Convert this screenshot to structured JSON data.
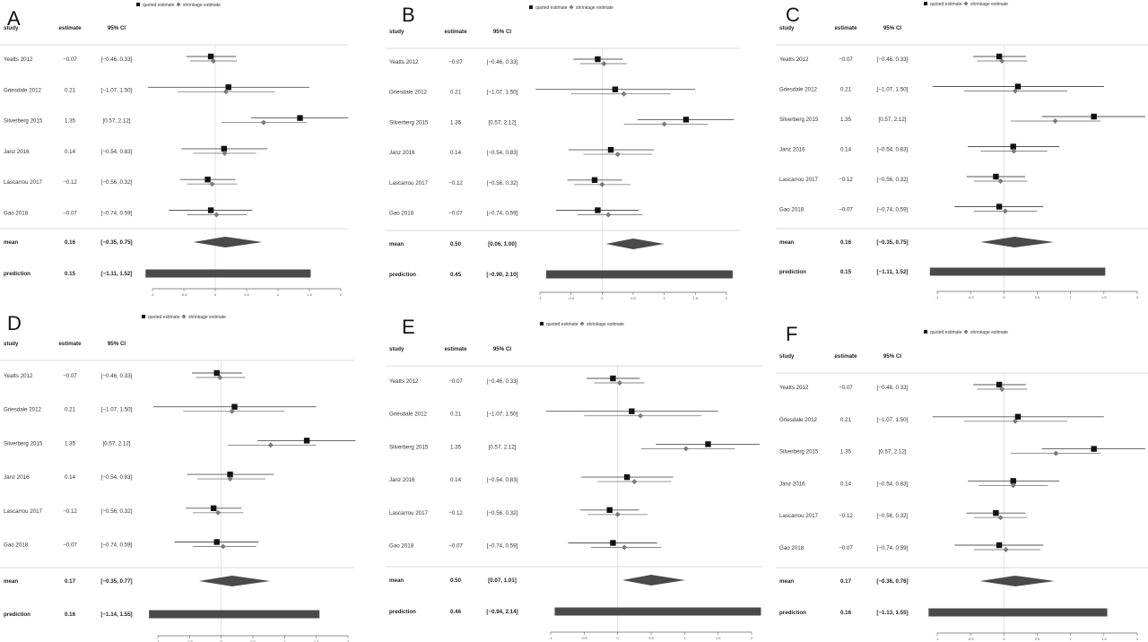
{
  "legend": {
    "quoted_label": "quoted estimate",
    "shrinkage_label": "shrinkage estimate"
  },
  "headers": {
    "study": "study",
    "estimate": "estimate",
    "ci": "95% CI"
  },
  "row_labels": {
    "mean": "mean",
    "prediction": "prediction"
  },
  "colors": {
    "quoted": "#111111",
    "shrinkage": "#7a7a7a",
    "summary": "#4a4a4a",
    "rule": "#cccccc"
  },
  "chart_data": [
    {
      "type": "forest",
      "panel": "A",
      "xlim": [
        -1,
        2
      ],
      "xticks": [
        "-1",
        "-0.5",
        "0",
        "0.5",
        "1",
        "1.5",
        "2"
      ],
      "studies": [
        {
          "name": "Yeatts 2012",
          "estimate": "−0.07",
          "ci": "[−0.46, 0.33]",
          "q": -0.07,
          "qlo": -0.46,
          "qhi": 0.33,
          "s": -0.03,
          "slo": -0.4,
          "shi": 0.35
        },
        {
          "name": "Griesdale 2012",
          "estimate": "0.21",
          "ci": "[−1.07, 1.50]",
          "q": 0.21,
          "qlo": -1.07,
          "qhi": 1.5,
          "s": 0.17,
          "slo": -0.6,
          "shi": 0.95
        },
        {
          "name": "Silverberg 2015",
          "estimate": "1.35",
          "ci": "[0.57, 2.12]",
          "q": 1.35,
          "qlo": 0.57,
          "qhi": 2.12,
          "s": 0.77,
          "slo": 0.1,
          "shi": 1.45
        },
        {
          "name": "Janz 2016",
          "estimate": "0.14",
          "ci": "[−0.54, 0.83]",
          "q": 0.14,
          "qlo": -0.54,
          "qhi": 0.83,
          "s": 0.15,
          "slo": -0.35,
          "shi": 0.65
        },
        {
          "name": "Lascarrou 2017",
          "estimate": "−0.12",
          "ci": "[−0.56, 0.32]",
          "q": -0.12,
          "qlo": -0.56,
          "qhi": 0.32,
          "s": -0.05,
          "slo": -0.45,
          "shi": 0.35
        },
        {
          "name": "Gao 2018",
          "estimate": "−0.07",
          "ci": "[−0.74, 0.59]",
          "q": -0.07,
          "qlo": -0.74,
          "qhi": 0.59,
          "s": 0.02,
          "slo": -0.45,
          "shi": 0.5
        }
      ],
      "mean": {
        "estimate": "0.16",
        "ci": "[−0.35, 0.75]",
        "value": 0.16,
        "lo": -0.35,
        "hi": 0.75
      },
      "prediction": {
        "estimate": "0.15",
        "ci": "[−1.11, 1.52]",
        "lo": -1.11,
        "hi": 1.52
      }
    },
    {
      "type": "forest",
      "panel": "B",
      "xlim": [
        -1,
        2
      ],
      "xticks": [
        "-1",
        "-0.5",
        "0",
        "0.5",
        "1",
        "1.5",
        "2"
      ],
      "studies": [
        {
          "name": "Yeatts 2012",
          "estimate": "−0.07",
          "ci": "[−0.46, 0.33]",
          "q": -0.07,
          "qlo": -0.46,
          "qhi": 0.33,
          "s": 0.03,
          "slo": -0.35,
          "shi": 0.4
        },
        {
          "name": "Griesdale 2012",
          "estimate": "0.21",
          "ci": "[−1.07, 1.50]",
          "q": 0.21,
          "qlo": -1.07,
          "qhi": 1.5,
          "s": 0.35,
          "slo": -0.5,
          "shi": 1.1
        },
        {
          "name": "Silverberg 2015",
          "estimate": "1.35",
          "ci": "[0.57, 2.12]",
          "q": 1.35,
          "qlo": 0.57,
          "qhi": 2.12,
          "s": 1.0,
          "slo": 0.35,
          "shi": 1.7
        },
        {
          "name": "Janz 2016",
          "estimate": "0.14",
          "ci": "[−0.54, 0.83]",
          "q": 0.14,
          "qlo": -0.54,
          "qhi": 0.83,
          "s": 0.25,
          "slo": -0.3,
          "shi": 0.8
        },
        {
          "name": "Lascarrou 2017",
          "estimate": "−0.12",
          "ci": "[−0.56, 0.32]",
          "q": -0.12,
          "qlo": -0.56,
          "qhi": 0.32,
          "s": 0.0,
          "slo": -0.45,
          "shi": 0.45
        },
        {
          "name": "Gao 2018",
          "estimate": "−0.07",
          "ci": "[−0.74, 0.59]",
          "q": -0.07,
          "qlo": -0.74,
          "qhi": 0.59,
          "s": 0.1,
          "slo": -0.4,
          "shi": 0.65
        }
      ],
      "mean": {
        "estimate": "0.50",
        "ci": "[0.06, 1.00]",
        "value": 0.5,
        "lo": 0.06,
        "hi": 1.0
      },
      "prediction": {
        "estimate": "0.45",
        "ci": "[−0.90, 2.10]",
        "lo": -0.9,
        "hi": 2.1
      }
    },
    {
      "type": "forest",
      "panel": "C",
      "xlim": [
        -1,
        2
      ],
      "xticks": [
        "-1",
        "-0.5",
        "0",
        "0.5",
        "1",
        "1.5",
        "2"
      ],
      "studies": [
        {
          "name": "Yeatts 2012",
          "estimate": "−0.07",
          "ci": "[−0.46, 0.33]",
          "q": -0.07,
          "qlo": -0.46,
          "qhi": 0.33,
          "s": -0.03,
          "slo": -0.4,
          "shi": 0.35
        },
        {
          "name": "Griesdale 2012",
          "estimate": "0.21",
          "ci": "[−1.07, 1.50]",
          "q": 0.21,
          "qlo": -1.07,
          "qhi": 1.5,
          "s": 0.17,
          "slo": -0.6,
          "shi": 0.95
        },
        {
          "name": "Silverberg 2015",
          "estimate": "1.35",
          "ci": "[0.57, 2.12]",
          "q": 1.35,
          "qlo": 0.57,
          "qhi": 2.12,
          "s": 0.77,
          "slo": 0.1,
          "shi": 1.45
        },
        {
          "name": "Janz 2016",
          "estimate": "0.14",
          "ci": "[−0.54, 0.83]",
          "q": 0.14,
          "qlo": -0.54,
          "qhi": 0.83,
          "s": 0.15,
          "slo": -0.35,
          "shi": 0.65
        },
        {
          "name": "Lascarrou 2017",
          "estimate": "−0.12",
          "ci": "[−0.56, 0.32]",
          "q": -0.12,
          "qlo": -0.56,
          "qhi": 0.32,
          "s": -0.05,
          "slo": -0.45,
          "shi": 0.35
        },
        {
          "name": "Gao 2018",
          "estimate": "−0.07",
          "ci": "[−0.74, 0.59]",
          "q": -0.07,
          "qlo": -0.74,
          "qhi": 0.59,
          "s": 0.02,
          "slo": -0.45,
          "shi": 0.5
        }
      ],
      "mean": {
        "estimate": "0.16",
        "ci": "[−0.35, 0.75]",
        "value": 0.16,
        "lo": -0.35,
        "hi": 0.75
      },
      "prediction": {
        "estimate": "0.15",
        "ci": "[−1.11, 1.52]",
        "lo": -1.11,
        "hi": 1.52
      }
    },
    {
      "type": "forest",
      "panel": "D",
      "xlim": [
        -1,
        2
      ],
      "xticks": [
        "-1",
        "-0.5",
        "0",
        "0.5",
        "1",
        "1.5",
        "2"
      ],
      "studies": [
        {
          "name": "Yeatts 2012",
          "estimate": "−0.07",
          "ci": "[−0.46, 0.33]",
          "q": -0.07,
          "qlo": -0.46,
          "qhi": 0.33,
          "s": -0.02,
          "slo": -0.4,
          "shi": 0.38
        },
        {
          "name": "Griesdale 2012",
          "estimate": "0.21",
          "ci": "[−1.07, 1.50]",
          "q": 0.21,
          "qlo": -1.07,
          "qhi": 1.5,
          "s": 0.17,
          "slo": -0.6,
          "shi": 1.0
        },
        {
          "name": "Silverberg 2015",
          "estimate": "1.35",
          "ci": "[0.57, 2.12]",
          "q": 1.35,
          "qlo": 0.57,
          "qhi": 2.12,
          "s": 0.78,
          "slo": 0.1,
          "shi": 1.5
        },
        {
          "name": "Janz 2016",
          "estimate": "0.14",
          "ci": "[−0.54, 0.83]",
          "q": 0.14,
          "qlo": -0.54,
          "qhi": 0.83,
          "s": 0.14,
          "slo": -0.38,
          "shi": 0.7
        },
        {
          "name": "Lascarrou 2017",
          "estimate": "−0.12",
          "ci": "[−0.56, 0.32]",
          "q": -0.12,
          "qlo": -0.56,
          "qhi": 0.32,
          "s": -0.05,
          "slo": -0.45,
          "shi": 0.35
        },
        {
          "name": "Gao 2018",
          "estimate": "−0.07",
          "ci": "[−0.74, 0.59]",
          "q": -0.07,
          "qlo": -0.74,
          "qhi": 0.59,
          "s": 0.03,
          "slo": -0.45,
          "shi": 0.55
        }
      ],
      "mean": {
        "estimate": "0.17",
        "ci": "[−0.35, 0.77]",
        "value": 0.17,
        "lo": -0.35,
        "hi": 0.77
      },
      "prediction": {
        "estimate": "0.16",
        "ci": "[−1.14, 1.55]",
        "lo": -1.14,
        "hi": 1.55
      }
    },
    {
      "type": "forest",
      "panel": "E",
      "xlim": [
        -1,
        2
      ],
      "xticks": [
        "-1",
        "-0.5",
        "0",
        "0.5",
        "1",
        "1.5",
        "2"
      ],
      "studies": [
        {
          "name": "Yeatts 2012",
          "estimate": "−0.07",
          "ci": "[−0.46, 0.33]",
          "q": -0.07,
          "qlo": -0.46,
          "qhi": 0.33,
          "s": 0.03,
          "slo": -0.35,
          "shi": 0.4
        },
        {
          "name": "Griesdale 2012",
          "estimate": "0.21",
          "ci": "[−1.07, 1.50]",
          "q": 0.21,
          "qlo": -1.07,
          "qhi": 1.5,
          "s": 0.34,
          "slo": -0.5,
          "shi": 1.25
        },
        {
          "name": "Silverberg 2015",
          "estimate": "1.35",
          "ci": "[0.57, 2.12]",
          "q": 1.35,
          "qlo": 0.57,
          "qhi": 2.12,
          "s": 1.02,
          "slo": 0.35,
          "shi": 1.75
        },
        {
          "name": "Janz 2016",
          "estimate": "0.14",
          "ci": "[−0.54, 0.83]",
          "q": 0.14,
          "qlo": -0.54,
          "qhi": 0.83,
          "s": 0.25,
          "slo": -0.3,
          "shi": 0.8
        },
        {
          "name": "Lascarrou 2017",
          "estimate": "−0.12",
          "ci": "[−0.56, 0.32]",
          "q": -0.12,
          "qlo": -0.56,
          "qhi": 0.32,
          "s": 0.0,
          "slo": -0.45,
          "shi": 0.45
        },
        {
          "name": "Gao 2018",
          "estimate": "−0.07",
          "ci": "[−0.74, 0.59]",
          "q": -0.07,
          "qlo": -0.74,
          "qhi": 0.59,
          "s": 0.1,
          "slo": -0.4,
          "shi": 0.65
        }
      ],
      "mean": {
        "estimate": "0.50",
        "ci": "[0.07, 1.01]",
        "value": 0.5,
        "lo": 0.07,
        "hi": 1.01
      },
      "prediction": {
        "estimate": "0.46",
        "ci": "[−0.94, 2.14]",
        "lo": -0.94,
        "hi": 2.14
      }
    },
    {
      "type": "forest",
      "panel": "F",
      "xlim": [
        -1,
        2
      ],
      "xticks": [
        "-1",
        "-0.5",
        "0",
        "0.5",
        "1",
        "1.5",
        "2"
      ],
      "studies": [
        {
          "name": "Yeatts 2012",
          "estimate": "−0.07",
          "ci": "[−0.46, 0.33]",
          "q": -0.07,
          "qlo": -0.46,
          "qhi": 0.33,
          "s": -0.03,
          "slo": -0.4,
          "shi": 0.35
        },
        {
          "name": "Griesdale 2012",
          "estimate": "0.21",
          "ci": "[−1.07, 1.50]",
          "q": 0.21,
          "qlo": -1.07,
          "qhi": 1.5,
          "s": 0.17,
          "slo": -0.6,
          "shi": 0.95
        },
        {
          "name": "Silverberg 2015",
          "estimate": "1.35",
          "ci": "[0.57, 2.12]",
          "q": 1.35,
          "qlo": 0.57,
          "qhi": 2.12,
          "s": 0.78,
          "slo": 0.1,
          "shi": 1.45
        },
        {
          "name": "Janz 2016",
          "estimate": "0.14",
          "ci": "[−0.54, 0.83]",
          "q": 0.14,
          "qlo": -0.54,
          "qhi": 0.83,
          "s": 0.14,
          "slo": -0.38,
          "shi": 0.66
        },
        {
          "name": "Lascarrou 2017",
          "estimate": "−0.12",
          "ci": "[−0.56, 0.32]",
          "q": -0.12,
          "qlo": -0.56,
          "qhi": 0.32,
          "s": -0.05,
          "slo": -0.45,
          "shi": 0.35
        },
        {
          "name": "Gao 2018",
          "estimate": "−0.07",
          "ci": "[−0.74, 0.59]",
          "q": -0.07,
          "qlo": -0.74,
          "qhi": 0.59,
          "s": 0.03,
          "slo": -0.45,
          "shi": 0.55
        }
      ],
      "mean": {
        "estimate": "0.17",
        "ci": "[−0.36, 0.76]",
        "value": 0.17,
        "lo": -0.36,
        "hi": 0.76
      },
      "prediction": {
        "estimate": "0.16",
        "ci": "[−1.13, 1.55]",
        "lo": -1.13,
        "hi": 1.55
      }
    }
  ]
}
